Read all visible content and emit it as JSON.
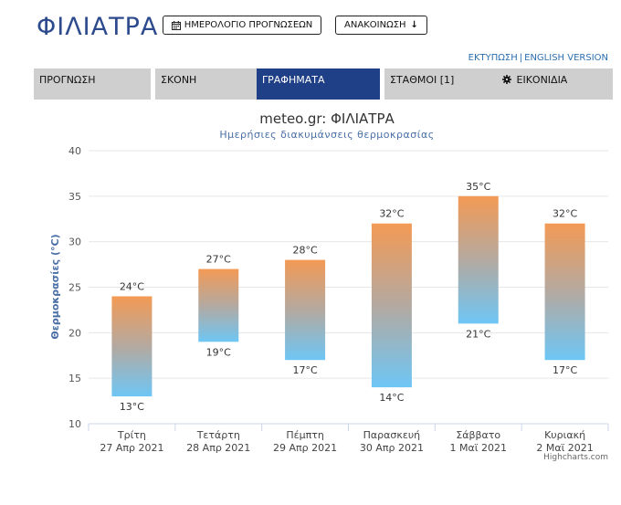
{
  "header": {
    "city": "ΦΙΛΙΑΤΡΑ",
    "calendar_button": "ΗΜΕΡΟΛΟΓΙΟ ΠΡΟΓΝΩΣΕΩΝ",
    "announce_button": "ΑΝΑΚΟΙΝΩΣΗ",
    "print_link": "ΕΚΤΥΠΩΣΗ",
    "english_link": "ENGLISH VERSION"
  },
  "tabs": [
    {
      "label": "ΠΡΟΓΝΩΣΗ",
      "active": false
    },
    {
      "label": "ΣΚΟΝΗ",
      "active": false
    },
    {
      "label": "ΓΡΑΦΗΜΑΤΑ",
      "active": true
    },
    {
      "label": "ΣΤΑΘΜΟΙ [1]",
      "active": false
    },
    {
      "label": "ΕΙΚΟΝΙΔΙΑ",
      "active": false,
      "icon": "gear-icon"
    }
  ],
  "colors": {
    "brand": "#2c4a8c",
    "active_tab": "#1f3f86",
    "tab_bg": "#cfcfcf",
    "bar_high": "#f39a55",
    "bar_low": "#6ec6f5"
  },
  "chart_data": {
    "type": "columnrange",
    "title": "meteo.gr: ΦΙΛΙΑΤΡΑ",
    "subtitle": "Ημερήσιες διακυμάνσεις θερμοκρασίας",
    "ylabel": "Θερμοκρασίες (°C)",
    "xlabel": "",
    "ylim": [
      10,
      40
    ],
    "yticks": [
      10,
      15,
      20,
      25,
      30,
      35,
      40
    ],
    "grid": true,
    "unit": "°C",
    "categories": [
      {
        "day": "Τρίτη",
        "date": "27 Απρ 2021"
      },
      {
        "day": "Τετάρτη",
        "date": "28 Απρ 2021"
      },
      {
        "day": "Πέμπτη",
        "date": "29 Απρ 2021"
      },
      {
        "day": "Παρασκευή",
        "date": "30 Απρ 2021"
      },
      {
        "day": "Σάββατο",
        "date": "1 Μαϊ 2021"
      },
      {
        "day": "Κυριακή",
        "date": "2 Μαϊ 2021"
      }
    ],
    "low": [
      13,
      19,
      17,
      14,
      21,
      17
    ],
    "high": [
      24,
      27,
      28,
      32,
      35,
      32
    ]
  },
  "credit": "Highcharts.com"
}
